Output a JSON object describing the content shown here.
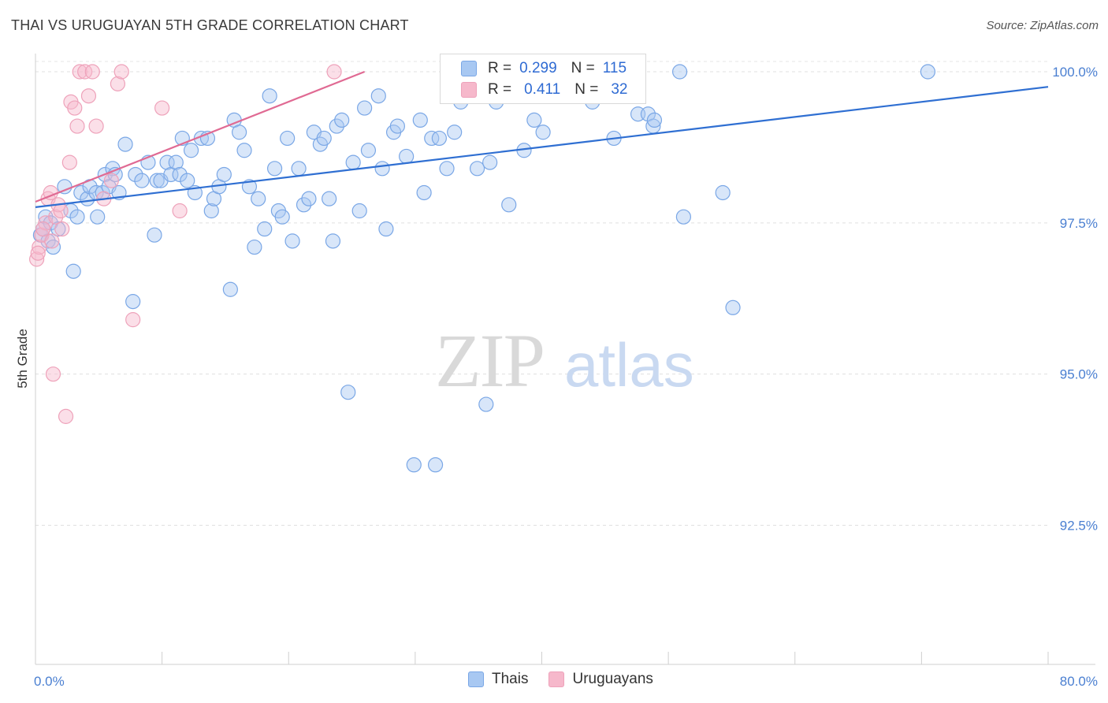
{
  "title": "THAI VS URUGUAYAN 5TH GRADE CORRELATION CHART",
  "source": "Source: ZipAtlas.com",
  "watermark": {
    "part1": "ZIP",
    "part2": "atlas"
  },
  "legend": {
    "rows": [
      {
        "r_label": "R =",
        "r_value": "0.299",
        "n_label": "N =",
        "n_value": "115",
        "color": "#a8c8f2"
      },
      {
        "r_label": "R =",
        "r_value": "0.411",
        "n_label": "N =",
        "n_value": "32",
        "color": "#f6b8cb"
      }
    ]
  },
  "bottom_legend": [
    {
      "label": "Thais",
      "color": "#a8c8f2"
    },
    {
      "label": "Uruguayans",
      "color": "#f6b8cb"
    }
  ],
  "chart_data": {
    "type": "scatter",
    "title": "THAI VS URUGUAYAN 5TH GRADE CORRELATION CHART",
    "xlabel": "",
    "ylabel": "5th Grade",
    "xlim": [
      0,
      80
    ],
    "ylim": [
      90.2,
      100.3
    ],
    "x_tick_labels": [
      {
        "value": 0,
        "label": "0.0%"
      },
      {
        "value": 80,
        "label": "80.0%"
      }
    ],
    "y_tick_labels": [
      {
        "value": 100,
        "label": "100.0%"
      },
      {
        "value": 97.5,
        "label": "97.5%"
      },
      {
        "value": 95,
        "label": "95.0%"
      },
      {
        "value": 92.5,
        "label": "92.5%"
      }
    ],
    "grid": "horizontal dashed",
    "series": [
      {
        "name": "Thais",
        "color": "#a8c8f2",
        "stroke": "#7aa7e6",
        "trend_color": "#2f6fd2",
        "trend": {
          "x0": 0,
          "y0": 97.76,
          "x1": 80,
          "y1": 99.75
        },
        "points": [
          [
            0.4,
            97.3
          ],
          [
            0.6,
            97.4
          ],
          [
            0.8,
            97.6
          ],
          [
            1.0,
            97.2
          ],
          [
            1.2,
            97.5
          ],
          [
            1.4,
            97.1
          ],
          [
            1.8,
            97.4
          ],
          [
            2.3,
            98.1
          ],
          [
            2.8,
            97.7
          ],
          [
            3.0,
            96.7
          ],
          [
            3.3,
            97.6
          ],
          [
            3.6,
            98.0
          ],
          [
            4.1,
            97.9
          ],
          [
            4.3,
            98.1
          ],
          [
            4.8,
            98.0
          ],
          [
            4.9,
            97.6
          ],
          [
            5.3,
            98.0
          ],
          [
            5.5,
            98.3
          ],
          [
            5.8,
            98.1
          ],
          [
            6.1,
            98.4
          ],
          [
            6.3,
            98.3
          ],
          [
            6.6,
            98.0
          ],
          [
            7.1,
            98.8
          ],
          [
            7.7,
            96.2
          ],
          [
            7.9,
            98.3
          ],
          [
            8.4,
            98.2
          ],
          [
            8.9,
            98.5
          ],
          [
            9.4,
            97.3
          ],
          [
            9.6,
            98.2
          ],
          [
            9.9,
            98.2
          ],
          [
            10.4,
            98.5
          ],
          [
            10.7,
            98.3
          ],
          [
            11.1,
            98.5
          ],
          [
            11.4,
            98.3
          ],
          [
            11.6,
            98.9
          ],
          [
            12.0,
            98.2
          ],
          [
            12.3,
            98.7
          ],
          [
            12.6,
            98.0
          ],
          [
            13.1,
            98.9
          ],
          [
            13.6,
            98.9
          ],
          [
            13.9,
            97.7
          ],
          [
            14.1,
            97.9
          ],
          [
            14.5,
            98.1
          ],
          [
            14.9,
            98.3
          ],
          [
            15.4,
            96.4
          ],
          [
            15.7,
            99.2
          ],
          [
            16.1,
            99.0
          ],
          [
            16.5,
            98.7
          ],
          [
            16.9,
            98.1
          ],
          [
            17.3,
            97.1
          ],
          [
            17.6,
            97.9
          ],
          [
            18.1,
            97.4
          ],
          [
            18.5,
            99.6
          ],
          [
            18.9,
            98.4
          ],
          [
            19.2,
            97.7
          ],
          [
            19.5,
            97.6
          ],
          [
            19.9,
            98.9
          ],
          [
            20.3,
            97.2
          ],
          [
            20.8,
            98.4
          ],
          [
            21.2,
            97.8
          ],
          [
            21.6,
            97.9
          ],
          [
            22.0,
            99.0
          ],
          [
            22.5,
            98.8
          ],
          [
            22.8,
            98.9
          ],
          [
            23.2,
            97.9
          ],
          [
            23.5,
            97.2
          ],
          [
            23.8,
            99.1
          ],
          [
            24.2,
            99.2
          ],
          [
            24.7,
            94.7
          ],
          [
            25.1,
            98.5
          ],
          [
            25.6,
            97.7
          ],
          [
            26.0,
            99.4
          ],
          [
            26.3,
            98.7
          ],
          [
            27.1,
            99.6
          ],
          [
            27.4,
            98.4
          ],
          [
            27.7,
            97.4
          ],
          [
            28.3,
            99.0
          ],
          [
            28.6,
            99.1
          ],
          [
            29.3,
            98.6
          ],
          [
            29.9,
            93.5
          ],
          [
            30.4,
            99.2
          ],
          [
            30.7,
            98.0
          ],
          [
            31.3,
            98.9
          ],
          [
            31.6,
            93.5
          ],
          [
            31.9,
            98.9
          ],
          [
            32.5,
            98.4
          ],
          [
            33.1,
            99.0
          ],
          [
            33.6,
            99.5
          ],
          [
            34.0,
            100.0
          ],
          [
            34.4,
            99.7
          ],
          [
            34.9,
            98.4
          ],
          [
            35.6,
            94.5
          ],
          [
            35.9,
            98.5
          ],
          [
            36.4,
            99.5
          ],
          [
            36.9,
            100.0
          ],
          [
            37.4,
            97.8
          ],
          [
            38.1,
            99.8
          ],
          [
            38.6,
            98.7
          ],
          [
            39.4,
            99.2
          ],
          [
            39.7,
            100.0
          ],
          [
            40.1,
            99.0
          ],
          [
            41.3,
            99.6
          ],
          [
            41.9,
            100.0
          ],
          [
            42.4,
            99.7
          ],
          [
            44.0,
            99.5
          ],
          [
            45.7,
            98.9
          ],
          [
            47.6,
            99.3
          ],
          [
            48.4,
            99.3
          ],
          [
            48.8,
            99.1
          ],
          [
            48.9,
            99.2
          ],
          [
            50.9,
            100.0
          ],
          [
            51.2,
            97.6
          ],
          [
            54.3,
            98.0
          ],
          [
            55.1,
            96.1
          ],
          [
            70.5,
            100.0
          ]
        ]
      },
      {
        "name": "Uruguayans",
        "color": "#f6b8cb",
        "stroke": "#eea2ba",
        "trend_color": "#e06a93",
        "trend": {
          "x0": 0,
          "y0": 97.85,
          "x1": 26,
          "y1": 100.0
        },
        "points": [
          [
            0.1,
            96.9
          ],
          [
            0.3,
            97.1
          ],
          [
            0.5,
            97.3
          ],
          [
            0.8,
            97.5
          ],
          [
            1.0,
            97.9
          ],
          [
            1.2,
            98.0
          ],
          [
            1.3,
            97.2
          ],
          [
            1.4,
            95.0
          ],
          [
            1.6,
            97.6
          ],
          [
            1.8,
            97.8
          ],
          [
            2.1,
            97.4
          ],
          [
            2.4,
            94.3
          ],
          [
            2.7,
            98.5
          ],
          [
            2.8,
            99.5
          ],
          [
            3.1,
            99.4
          ],
          [
            3.3,
            99.1
          ],
          [
            3.5,
            100.0
          ],
          [
            3.9,
            100.0
          ],
          [
            4.2,
            99.6
          ],
          [
            4.5,
            100.0
          ],
          [
            4.8,
            99.1
          ],
          [
            5.4,
            97.9
          ],
          [
            6.0,
            98.2
          ],
          [
            6.5,
            99.8
          ],
          [
            6.8,
            100.0
          ],
          [
            7.7,
            95.9
          ],
          [
            10.0,
            99.4
          ],
          [
            11.4,
            97.7
          ],
          [
            23.6,
            100.0
          ],
          [
            0.2,
            97.0
          ],
          [
            0.6,
            97.4
          ],
          [
            2.0,
            97.7
          ]
        ]
      }
    ]
  }
}
